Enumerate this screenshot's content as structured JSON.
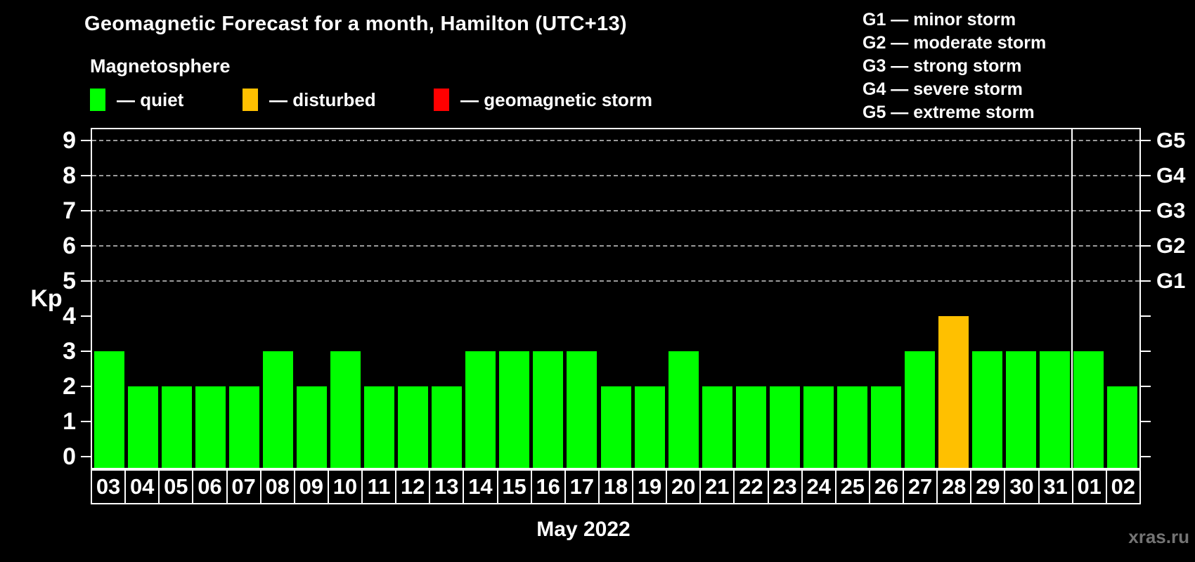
{
  "header": {
    "title": "Geomagnetic Forecast for a month, Hamilton (UTC+13)",
    "subtitle": "Magnetosphere",
    "legend": [
      {
        "name": "quiet",
        "label": "— quiet",
        "color": "#00ff00"
      },
      {
        "name": "disturbed",
        "label": "— disturbed",
        "color": "#ffc000"
      },
      {
        "name": "geomagnetic-storm",
        "label": "— geomagnetic storm",
        "color": "#ff0000"
      }
    ],
    "storm_scale": [
      "G1 — minor storm",
      "G2 — moderate storm",
      "G3 — strong storm",
      "G4 — severe storm",
      "G5 — extreme storm"
    ]
  },
  "chart_data": {
    "type": "bar",
    "title": "Geomagnetic Forecast for a month, Hamilton (UTC+13)",
    "ylabel": "Kp",
    "xlabel": "May 2022",
    "ylim": [
      0,
      9
    ],
    "yticks": [
      0,
      1,
      2,
      3,
      4,
      5,
      6,
      7,
      8,
      9
    ],
    "gridlines_at": [
      5,
      6,
      7,
      8,
      9
    ],
    "grid": "dashed",
    "legend_position": "top",
    "right_axis": [
      {
        "kp": 5,
        "label": "G1"
      },
      {
        "kp": 6,
        "label": "G2"
      },
      {
        "kp": 7,
        "label": "G3"
      },
      {
        "kp": 8,
        "label": "G4"
      },
      {
        "kp": 9,
        "label": "G5"
      }
    ],
    "status_colors": {
      "quiet": "#00ff00",
      "disturbed": "#ffc000",
      "storm": "#ff0000"
    },
    "month_separator_after_index": 28,
    "bars": [
      {
        "day": "03",
        "kp": 3,
        "status": "quiet"
      },
      {
        "day": "04",
        "kp": 2,
        "status": "quiet"
      },
      {
        "day": "05",
        "kp": 2,
        "status": "quiet"
      },
      {
        "day": "06",
        "kp": 2,
        "status": "quiet"
      },
      {
        "day": "07",
        "kp": 2,
        "status": "quiet"
      },
      {
        "day": "08",
        "kp": 3,
        "status": "quiet"
      },
      {
        "day": "09",
        "kp": 2,
        "status": "quiet"
      },
      {
        "day": "10",
        "kp": 3,
        "status": "quiet"
      },
      {
        "day": "11",
        "kp": 2,
        "status": "quiet"
      },
      {
        "day": "12",
        "kp": 2,
        "status": "quiet"
      },
      {
        "day": "13",
        "kp": 2,
        "status": "quiet"
      },
      {
        "day": "14",
        "kp": 3,
        "status": "quiet"
      },
      {
        "day": "15",
        "kp": 3,
        "status": "quiet"
      },
      {
        "day": "16",
        "kp": 3,
        "status": "quiet"
      },
      {
        "day": "17",
        "kp": 3,
        "status": "quiet"
      },
      {
        "day": "18",
        "kp": 2,
        "status": "quiet"
      },
      {
        "day": "19",
        "kp": 2,
        "status": "quiet"
      },
      {
        "day": "20",
        "kp": 3,
        "status": "quiet"
      },
      {
        "day": "21",
        "kp": 2,
        "status": "quiet"
      },
      {
        "day": "22",
        "kp": 2,
        "status": "quiet"
      },
      {
        "day": "23",
        "kp": 2,
        "status": "quiet"
      },
      {
        "day": "24",
        "kp": 2,
        "status": "quiet"
      },
      {
        "day": "25",
        "kp": 2,
        "status": "quiet"
      },
      {
        "day": "26",
        "kp": 2,
        "status": "quiet"
      },
      {
        "day": "27",
        "kp": 3,
        "status": "quiet"
      },
      {
        "day": "28",
        "kp": 4,
        "status": "disturbed"
      },
      {
        "day": "29",
        "kp": 3,
        "status": "quiet"
      },
      {
        "day": "30",
        "kp": 3,
        "status": "quiet"
      },
      {
        "day": "31",
        "kp": 3,
        "status": "quiet"
      },
      {
        "day": "01",
        "kp": 3,
        "status": "quiet"
      },
      {
        "day": "02",
        "kp": 2,
        "status": "quiet"
      }
    ]
  },
  "footer": {
    "xlabel": "May 2022",
    "watermark": "xras.ru"
  }
}
